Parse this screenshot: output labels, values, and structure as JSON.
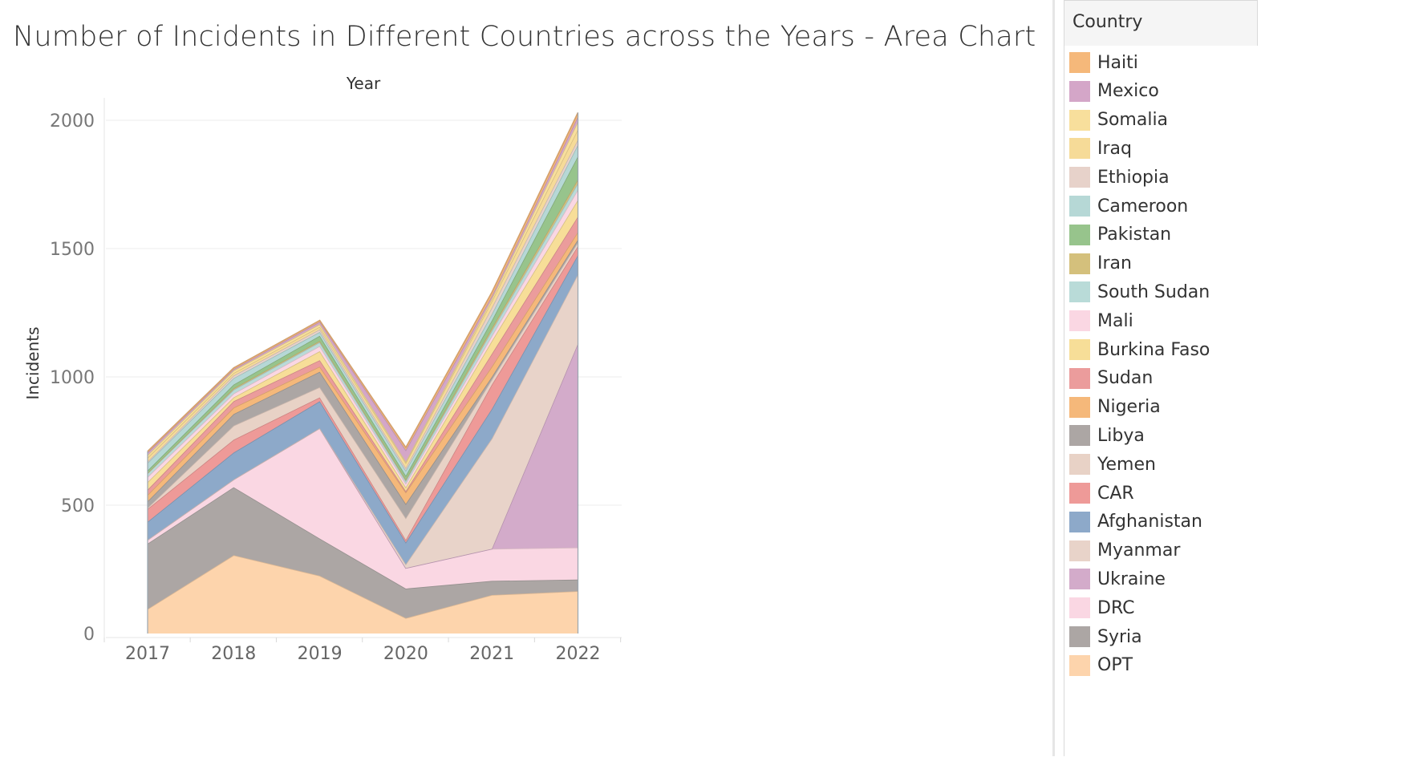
{
  "title": "Number of Incidents in Different Countries across the Years - Area Chart",
  "legend": {
    "title": "Country",
    "items": [
      {
        "label": "Haiti",
        "color": "#f5b87a"
      },
      {
        "label": "Mexico",
        "color": "#d4a6c8"
      },
      {
        "label": "Somalia",
        "color": "#f8df9c"
      },
      {
        "label": "Iraq",
        "color": "#f6db98"
      },
      {
        "label": "Ethiopia",
        "color": "#e7d2ca"
      },
      {
        "label": "Cameroon",
        "color": "#b6d8d6"
      },
      {
        "label": "Pakistan",
        "color": "#97c48c"
      },
      {
        "label": "Iran",
        "color": "#d4c07c"
      },
      {
        "label": "South Sudan",
        "color": "#b9dbd8"
      },
      {
        "label": "Mali",
        "color": "#fad7e3"
      },
      {
        "label": "Burkina Faso",
        "color": "#f7de98"
      },
      {
        "label": "Sudan",
        "color": "#eb9c9c"
      },
      {
        "label": "Nigeria",
        "color": "#f5b87a"
      },
      {
        "label": "Libya",
        "color": "#aca6a4"
      },
      {
        "label": "Yemen",
        "color": "#e8d2c6"
      },
      {
        "label": "CAR",
        "color": "#ee9a98"
      },
      {
        "label": "Afghanistan",
        "color": "#8da9c9"
      },
      {
        "label": "Myanmar",
        "color": "#e8d3c9"
      },
      {
        "label": "Ukraine",
        "color": "#d3abca"
      },
      {
        "label": "DRC",
        "color": "#fad7e3"
      },
      {
        "label": "Syria",
        "color": "#aca6a4"
      },
      {
        "label": "OPT",
        "color": "#fdd4ac"
      }
    ]
  },
  "chart_data": {
    "type": "area",
    "stacked": true,
    "title": "Number of Incidents in Different Countries across the Years - Area Chart",
    "xlabel": "Year",
    "ylabel": "Incidents",
    "x": [
      "2017",
      "2018",
      "2019",
      "2020",
      "2021",
      "2022"
    ],
    "yticks": [
      "0",
      "500",
      "1000",
      "1500",
      "2000"
    ],
    "ylim": [
      0,
      2000
    ],
    "grid": true,
    "legend_position": "right",
    "series": [
      {
        "name": "OPT",
        "color": "#fdd4ac",
        "values": [
          95,
          305,
          225,
          60,
          150,
          165
        ]
      },
      {
        "name": "Syria",
        "color": "#aca6a4",
        "values": [
          255,
          265,
          145,
          115,
          55,
          45
        ]
      },
      {
        "name": "DRC",
        "color": "#fad7e3",
        "values": [
          15,
          30,
          430,
          80,
          125,
          125
        ]
      },
      {
        "name": "Ukraine",
        "color": "#d3abca",
        "values": [
          0,
          0,
          0,
          0,
          0,
          795
        ]
      },
      {
        "name": "Myanmar",
        "color": "#e8d3c9",
        "values": [
          0,
          0,
          0,
          15,
          430,
          270
        ]
      },
      {
        "name": "Afghanistan",
        "color": "#8da9c9",
        "values": [
          70,
          105,
          105,
          85,
          115,
          75
        ]
      },
      {
        "name": "CAR",
        "color": "#ee9a98",
        "values": [
          50,
          50,
          15,
          10,
          95,
          35
        ]
      },
      {
        "name": "Yemen",
        "color": "#e8d2c6",
        "values": [
          5,
          55,
          40,
          85,
          20,
          15
        ]
      },
      {
        "name": "Libya",
        "color": "#aca6a4",
        "values": [
          25,
          45,
          60,
          55,
          10,
          10
        ]
      },
      {
        "name": "Nigeria",
        "color": "#f5b87a",
        "values": [
          25,
          25,
          20,
          45,
          40,
          30
        ]
      },
      {
        "name": "Sudan",
        "color": "#eb9c9c",
        "values": [
          20,
          25,
          25,
          5,
          50,
          60
        ]
      },
      {
        "name": "Burkina Faso",
        "color": "#f7de98",
        "values": [
          30,
          15,
          35,
          15,
          50,
          65
        ]
      },
      {
        "name": "Mali",
        "color": "#fad7e3",
        "values": [
          20,
          15,
          20,
          15,
          20,
          40
        ]
      },
      {
        "name": "South Sudan",
        "color": "#b9dbd8",
        "values": [
          15,
          15,
          15,
          10,
          20,
          25
        ]
      },
      {
        "name": "Iran",
        "color": "#d4c07c",
        "values": [
          0,
          5,
          5,
          5,
          10,
          15
        ]
      },
      {
        "name": "Pakistan",
        "color": "#97c48c",
        "values": [
          10,
          15,
          20,
          15,
          30,
          90
        ]
      },
      {
        "name": "Cameroon",
        "color": "#b6d8d6",
        "values": [
          30,
          25,
          15,
          20,
          25,
          45
        ]
      },
      {
        "name": "Ethiopia",
        "color": "#e7d2ca",
        "values": [
          5,
          10,
          10,
          10,
          25,
          20
        ]
      },
      {
        "name": "Iraq",
        "color": "#f6db98",
        "values": [
          15,
          10,
          10,
          20,
          25,
          40
        ]
      },
      {
        "name": "Somalia",
        "color": "#f8df9c",
        "values": [
          10,
          10,
          10,
          5,
          10,
          30
        ]
      },
      {
        "name": "Mexico",
        "color": "#d4a6c8",
        "values": [
          10,
          5,
          10,
          45,
          10,
          20
        ]
      },
      {
        "name": "Haiti",
        "color": "#f5b87a",
        "values": [
          5,
          5,
          5,
          10,
          15,
          15
        ]
      }
    ]
  }
}
